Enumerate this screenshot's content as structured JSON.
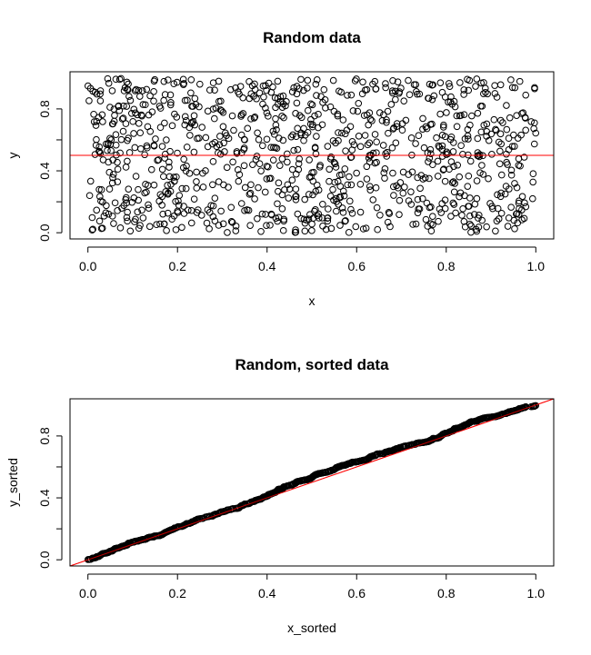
{
  "chart_data": [
    {
      "type": "scatter",
      "title": "Random data",
      "xlabel": "x",
      "ylabel": "y",
      "xlim": [
        -0.04,
        1.04
      ],
      "ylim": [
        -0.04,
        1.04
      ],
      "x_ticks": [
        "0.0",
        "0.2",
        "0.4",
        "0.6",
        "0.8",
        "1.0"
      ],
      "x_tick_values": [
        0,
        0.2,
        0.4,
        0.6,
        0.8,
        1.0
      ],
      "y_ticks": [
        "0.0",
        "0.4",
        "0.8"
      ],
      "y_tick_values": [
        0,
        0.4,
        0.8
      ],
      "y_minor_tick_values": [
        0.2,
        0.6
      ],
      "point_count": 1000,
      "point_distribution": "uniform on [0,1] x [0,1]",
      "point_marker": "open circle",
      "point_color": "#000000",
      "reference_line": {
        "kind": "horizontal",
        "y": 0.5,
        "color": "#ff0000"
      }
    },
    {
      "type": "scatter",
      "title": "Random, sorted data",
      "xlabel": "x_sorted",
      "ylabel": "y_sorted",
      "xlim": [
        -0.04,
        1.04
      ],
      "ylim": [
        -0.04,
        1.04
      ],
      "x_ticks": [
        "0.0",
        "0.2",
        "0.4",
        "0.6",
        "0.8",
        "1.0"
      ],
      "x_tick_values": [
        0,
        0.2,
        0.4,
        0.6,
        0.8,
        1.0
      ],
      "y_ticks": [
        "0.0",
        "0.4",
        "0.8"
      ],
      "y_tick_values": [
        0,
        0.4,
        0.8
      ],
      "y_minor_tick_values": [
        0.2,
        0.6
      ],
      "point_count": 1000,
      "point_distribution": "sorted x vs sorted y (near identity line)",
      "point_marker": "open circle",
      "point_color": "#000000",
      "reference_line": {
        "kind": "diagonal",
        "slope": 1,
        "intercept": 0,
        "color": "#ff0000"
      }
    }
  ]
}
